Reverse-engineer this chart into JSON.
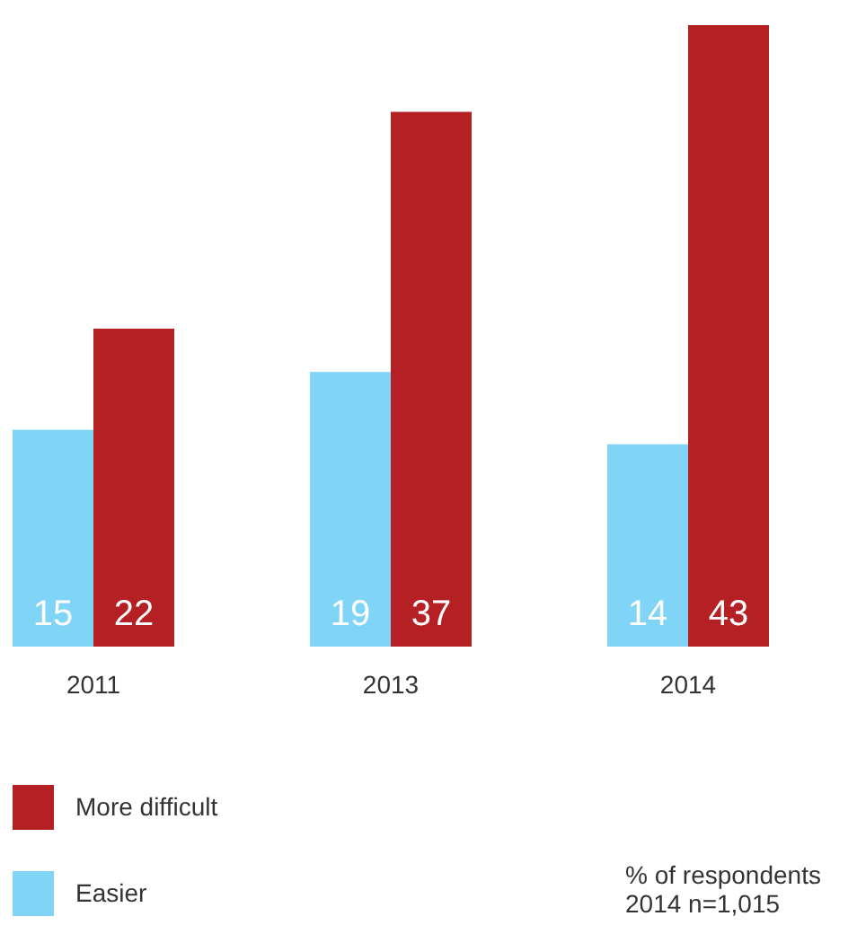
{
  "chart_data": {
    "type": "bar",
    "categories": [
      "2011",
      "2013",
      "2014"
    ],
    "series": [
      {
        "name": "Easier",
        "color": "#80d4f5",
        "values": [
          15,
          19,
          14
        ]
      },
      {
        "name": "More difficult",
        "color": "#b52025",
        "values": [
          22,
          37,
          43
        ]
      }
    ],
    "data_labels": true,
    "legend": "bottom left",
    "annotations": [
      "% of respondents",
      "2014 n=1,015"
    ]
  }
}
